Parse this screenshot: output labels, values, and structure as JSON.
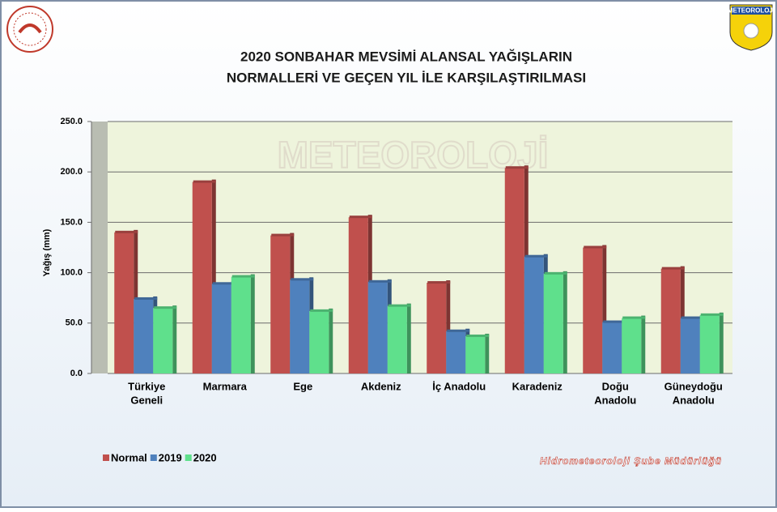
{
  "chart_data": {
    "type": "bar",
    "title": [
      "2020 SONBAHAR MEVSİMİ ALANSAL YAĞIŞLARIN",
      "NORMALLERİ VE GEÇEN YIL İLE KARŞILAŞTIRILMASI"
    ],
    "y_label": "Yağış (mm)",
    "logo_text": "METEOROLOJİ",
    "footer": "Hidrometeoroloji Şube Müdürlüğü",
    "categories": [
      [
        "Türkiye",
        "Geneli"
      ],
      [
        "Marmara"
      ],
      [
        "Ege"
      ],
      [
        "Akdeniz"
      ],
      [
        "İç Anadolu"
      ],
      [
        "Karadeniz"
      ],
      [
        "Doğu",
        "Anadolu"
      ],
      [
        "Güneydoğu",
        "Anadolu"
      ]
    ],
    "series": [
      {
        "name": "Normal",
        "color": "#c0504d",
        "values": [
          140,
          190,
          137,
          155,
          90,
          204,
          125,
          104
        ]
      },
      {
        "name": "2019",
        "color": "#4f81bd",
        "values": [
          74,
          89,
          93,
          91,
          42,
          116,
          51,
          55
        ]
      },
      {
        "name": "2020",
        "color": "#5fe08c",
        "values": [
          65,
          96,
          62,
          67,
          37,
          99,
          55,
          58
        ]
      }
    ],
    "ylim": [
      0,
      250
    ],
    "yticks": [
      {
        "value": 0,
        "label": "0.0"
      },
      {
        "value": 50,
        "label": "50.0"
      },
      {
        "value": 100,
        "label": "100.0"
      },
      {
        "value": 150,
        "label": "150.0"
      },
      {
        "value": 200,
        "label": "200.0"
      },
      {
        "value": 250,
        "label": "250.0"
      }
    ],
    "grid": true,
    "legend": "bottom-left"
  }
}
